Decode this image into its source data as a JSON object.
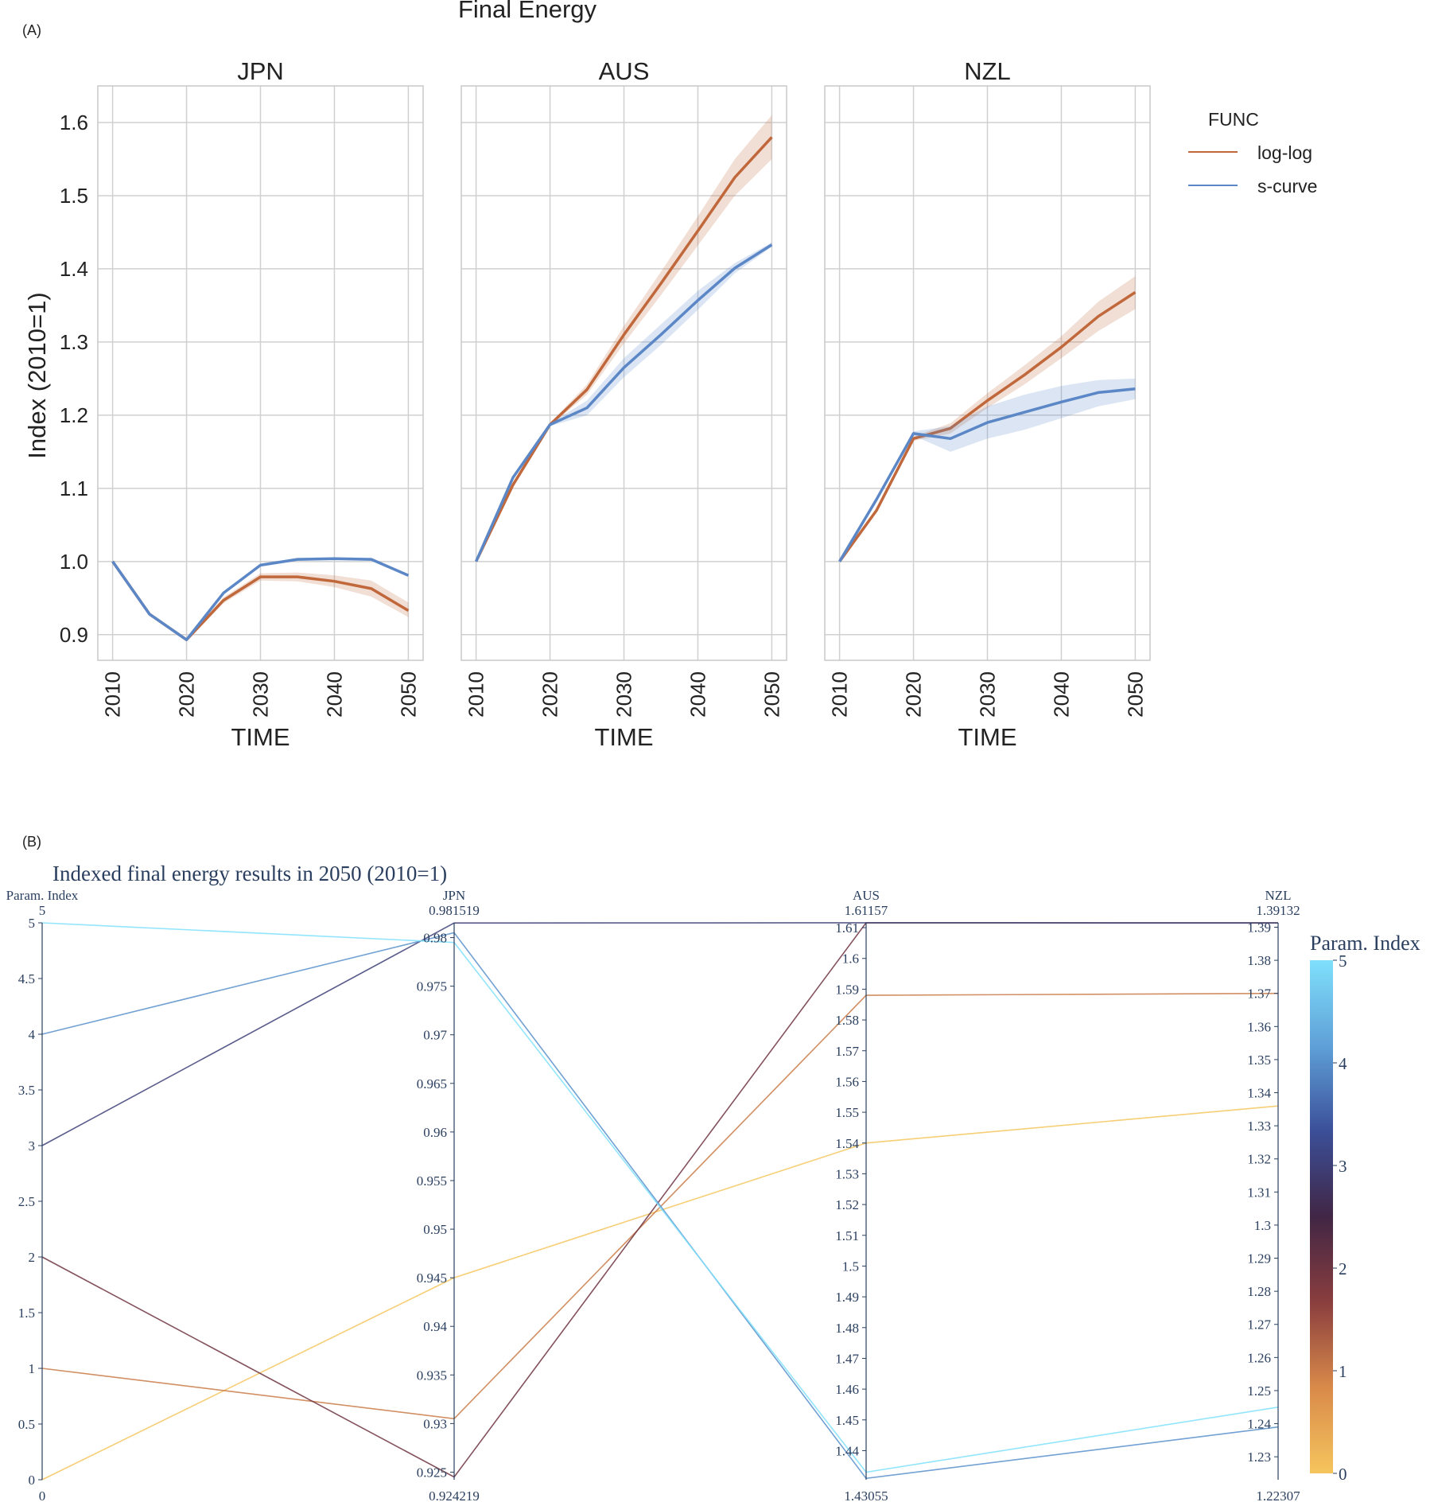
{
  "figure": {
    "panel_a_tag": "(A)",
    "panel_b_tag": "(B)"
  },
  "chart_data": [
    {
      "type": "line",
      "title": "Final Energy",
      "subplots": [
        "JPN",
        "AUS",
        "NZL"
      ],
      "xlabel": "TIME",
      "ylabel": "Index (2010=1)",
      "x": [
        2010,
        2015,
        2020,
        2025,
        2030,
        2035,
        2040,
        2045,
        2050
      ],
      "x_ticks": [
        2010,
        2020,
        2030,
        2040,
        2050
      ],
      "xlim": [
        2008,
        2052
      ],
      "ylim": [
        0.865,
        1.65
      ],
      "y_ticks": [
        0.9,
        1.0,
        1.1,
        1.2,
        1.3,
        1.4,
        1.5,
        1.6
      ],
      "y_tick_labels": [
        "0.9",
        "1.0",
        "1.1",
        "1.2",
        "1.3",
        "1.4",
        "1.5",
        "1.6"
      ],
      "grid": true,
      "legend": {
        "title": "FUNC",
        "placement": "right",
        "entries": [
          {
            "name": "log-log",
            "color": "#c0683b"
          },
          {
            "name": "s-curve",
            "color": "#5b87c7"
          }
        ]
      },
      "series": {
        "JPN": {
          "log-log": {
            "mean": [
              1.0,
              0.928,
              0.893,
              0.947,
              0.979,
              0.979,
              0.973,
              0.963,
              0.933
            ],
            "lower": [
              1.0,
              0.926,
              0.891,
              0.943,
              0.974,
              0.973,
              0.965,
              0.952,
              0.924
            ],
            "upper": [
              1.0,
              0.93,
              0.895,
              0.951,
              0.984,
              0.985,
              0.981,
              0.974,
              0.944
            ]
          },
          "s-curve": {
            "mean": [
              1.0,
              0.928,
              0.893,
              0.957,
              0.995,
              1.003,
              1.004,
              1.003,
              0.981
            ],
            "lower": [
              1.0,
              0.927,
              0.892,
              0.955,
              0.993,
              1.001,
              1.002,
              1.001,
              0.979
            ],
            "upper": [
              1.0,
              0.929,
              0.894,
              0.959,
              0.997,
              1.005,
              1.006,
              1.005,
              0.983
            ]
          }
        },
        "AUS": {
          "log-log": {
            "mean": [
              1.0,
              1.105,
              1.187,
              1.235,
              1.31,
              1.38,
              1.452,
              1.525,
              1.58
            ],
            "lower": [
              1.0,
              1.103,
              1.185,
              1.228,
              1.298,
              1.364,
              1.432,
              1.5,
              1.55
            ],
            "upper": [
              1.0,
              1.107,
              1.189,
              1.242,
              1.322,
              1.396,
              1.472,
              1.55,
              1.61
            ]
          },
          "s-curve": {
            "mean": [
              1.0,
              1.115,
              1.187,
              1.21,
              1.265,
              1.31,
              1.357,
              1.401,
              1.433
            ],
            "lower": [
              1.0,
              1.113,
              1.185,
              1.2,
              1.252,
              1.296,
              1.344,
              1.394,
              1.43
            ],
            "upper": [
              1.0,
              1.117,
              1.189,
              1.22,
              1.278,
              1.324,
              1.37,
              1.408,
              1.436
            ]
          }
        },
        "NZL": {
          "log-log": {
            "mean": [
              1.0,
              1.07,
              1.168,
              1.182,
              1.22,
              1.255,
              1.293,
              1.335,
              1.368
            ],
            "lower": [
              1.0,
              1.068,
              1.165,
              1.175,
              1.21,
              1.242,
              1.278,
              1.315,
              1.345
            ],
            "upper": [
              1.0,
              1.072,
              1.171,
              1.189,
              1.23,
              1.268,
              1.308,
              1.355,
              1.39
            ]
          },
          "s-curve": {
            "mean": [
              1.0,
              1.085,
              1.175,
              1.168,
              1.19,
              1.204,
              1.218,
              1.231,
              1.236
            ],
            "lower": [
              1.0,
              1.083,
              1.172,
              1.15,
              1.168,
              1.18,
              1.196,
              1.212,
              1.222
            ],
            "upper": [
              1.0,
              1.087,
              1.178,
              1.185,
              1.212,
              1.228,
              1.24,
              1.248,
              1.25
            ]
          }
        }
      }
    },
    {
      "type": "parallel_coordinates",
      "title": "Indexed final energy results in 2050 (2010=1)",
      "dimensions": [
        {
          "label": "Param. Index",
          "range": [
            0,
            5
          ],
          "range_labels": [
            "0",
            "5"
          ],
          "ticks": [
            0,
            0.5,
            1,
            1.5,
            2,
            2.5,
            3,
            3.5,
            4,
            4.5,
            5
          ],
          "tick_labels": [
            "0",
            "0.5",
            "1",
            "1.5",
            "2",
            "2.5",
            "3",
            "3.5",
            "4",
            "4.5",
            "5"
          ]
        },
        {
          "label": "JPN",
          "range": [
            0.924219,
            0.981519
          ],
          "range_labels": [
            "0.924219",
            "0.981519"
          ],
          "ticks": [
            0.925,
            0.93,
            0.935,
            0.94,
            0.945,
            0.95,
            0.955,
            0.96,
            0.965,
            0.97,
            0.975,
            0.98
          ],
          "tick_labels": [
            "0.925",
            "0.93",
            "0.935",
            "0.94",
            "0.945",
            "0.95",
            "0.955",
            "0.96",
            "0.965",
            "0.97",
            "0.975",
            "0.98"
          ]
        },
        {
          "label": "AUS",
          "range": [
            1.43055,
            1.61157
          ],
          "range_labels": [
            "1.43055",
            "1.61157"
          ],
          "ticks": [
            1.44,
            1.45,
            1.46,
            1.47,
            1.48,
            1.49,
            1.5,
            1.51,
            1.52,
            1.53,
            1.54,
            1.55,
            1.56,
            1.57,
            1.58,
            1.59,
            1.6,
            1.61
          ],
          "tick_labels": [
            "1.44",
            "1.45",
            "1.46",
            "1.47",
            "1.48",
            "1.49",
            "1.5",
            "1.51",
            "1.52",
            "1.53",
            "1.54",
            "1.55",
            "1.56",
            "1.57",
            "1.58",
            "1.59",
            "1.6",
            "1.61"
          ]
        },
        {
          "label": "NZL",
          "range": [
            1.22307,
            1.39132
          ],
          "range_labels": [
            "1.22307",
            "1.39132"
          ],
          "ticks": [
            1.23,
            1.24,
            1.25,
            1.26,
            1.27,
            1.28,
            1.29,
            1.3,
            1.31,
            1.32,
            1.33,
            1.34,
            1.35,
            1.36,
            1.37,
            1.38,
            1.39
          ],
          "tick_labels": [
            "1.23",
            "1.24",
            "1.25",
            "1.26",
            "1.27",
            "1.28",
            "1.29",
            "1.3",
            "1.31",
            "1.32",
            "1.33",
            "1.34",
            "1.35",
            "1.36",
            "1.37",
            "1.38",
            "1.39"
          ]
        }
      ],
      "lines": [
        {
          "param_index": 0,
          "values": [
            0,
            0.945,
            1.54,
            1.336
          ]
        },
        {
          "param_index": 1,
          "values": [
            1,
            0.9305,
            1.588,
            1.37
          ]
        },
        {
          "param_index": 2,
          "values": [
            2,
            0.9245,
            1.6116,
            1.3913
          ]
        },
        {
          "param_index": 3,
          "values": [
            3,
            0.9815,
            1.6116,
            1.3913
          ]
        },
        {
          "param_index": 4,
          "values": [
            4,
            0.9805,
            1.431,
            1.239
          ]
        },
        {
          "param_index": 5,
          "values": [
            5,
            0.9795,
            1.433,
            1.245
          ]
        }
      ],
      "colorbar": {
        "title": "Param. Index",
        "range": [
          0,
          5
        ],
        "ticks": [
          "0",
          "1",
          "2",
          "3",
          "4",
          "5"
        ],
        "colors": [
          "#f5c55d",
          "#d98a4a",
          "#8a3e3e",
          "#412645",
          "#3b4f98",
          "#5fa0d8",
          "#7fe0fb"
        ]
      }
    }
  ]
}
